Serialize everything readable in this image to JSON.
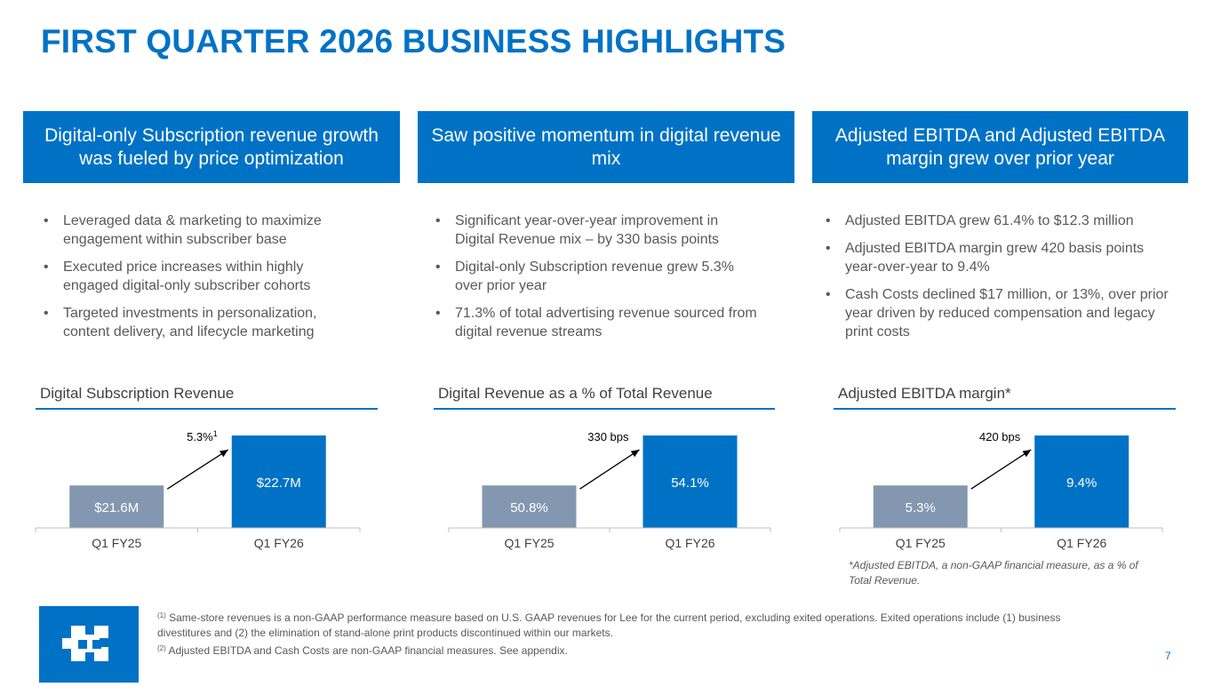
{
  "title": "FIRST QUARTER 2026 BUSINESS HIGHLIGHTS",
  "columns": [
    {
      "header": "Digital-only Subscription revenue growth was fueled by price optimization",
      "bullets": [
        "Leveraged data & marketing to maximize engagement within subscriber base",
        "Executed price increases within highly engaged digital-only subscriber cohorts",
        "Targeted investments in personalization, content delivery, and lifecycle marketing"
      ]
    },
    {
      "header": "Saw positive momentum in digital revenue mix",
      "bullets": [
        "Significant year-over-year improvement in Digital Revenue mix – by 330 basis points",
        "Digital-only Subscription revenue grew 5.3% over prior year",
        "71.3% of total advertising revenue sourced from digital revenue streams"
      ]
    },
    {
      "header": "Adjusted EBITDA and Adjusted EBITDA margin grew over prior year",
      "bullets": [
        "Adjusted EBITDA grew 61.4% to $12.3 million",
        "Adjusted EBITDA margin grew 420 basis points year-over-year to 9.4%",
        "Cash Costs declined $17 million, or 13%, over prior year driven by reduced compensation and legacy print costs"
      ]
    }
  ],
  "bullet_glyph": "•",
  "chart_data": [
    {
      "type": "bar",
      "title": "Digital Subscription Revenue",
      "categories": [
        "Q1 FY25",
        "Q1 FY26"
      ],
      "values": [
        21.6,
        22.7
      ],
      "labels": [
        "$21.6M",
        "$22.7M"
      ],
      "annotation": "5.3%",
      "annotation_sup": "1",
      "colors": [
        "#8497b0",
        "#0072c6"
      ]
    },
    {
      "type": "bar",
      "title": "Digital Revenue as a % of Total Revenue",
      "categories": [
        "Q1 FY25",
        "Q1 FY26"
      ],
      "values": [
        50.8,
        54.1
      ],
      "labels": [
        "50.8%",
        "54.1%"
      ],
      "annotation": "330 bps",
      "annotation_sup": "",
      "colors": [
        "#8497b0",
        "#0072c6"
      ]
    },
    {
      "type": "bar",
      "title": "Adjusted EBITDA margin*",
      "categories": [
        "Q1 FY25",
        "Q1 FY26"
      ],
      "values": [
        5.3,
        9.4
      ],
      "labels": [
        "5.3%",
        "9.4%"
      ],
      "annotation": "420 bps",
      "annotation_sup": "",
      "colors": [
        "#8497b0",
        "#0072c6"
      ]
    }
  ],
  "ebitda_footnote": "*Adjusted EBITDA, a non-GAAP financial measure, as a % of Total Revenue.",
  "footnotes": {
    "n1_marker": "(1)",
    "n1_text": " Same-store revenues is a non-GAAP performance measure based on U.S. GAAP revenues for Lee for the current period, excluding exited operations. Exited operations include (1) business divestitures and (2) the elimination of stand-alone print products discontinued within our markets.",
    "n2_marker": "(2)",
    "n2_text": " Adjusted EBITDA and Cash Costs are non-GAAP financial measures. See appendix."
  },
  "page_number": "7",
  "logo_name": "lee-enterprises-logo"
}
